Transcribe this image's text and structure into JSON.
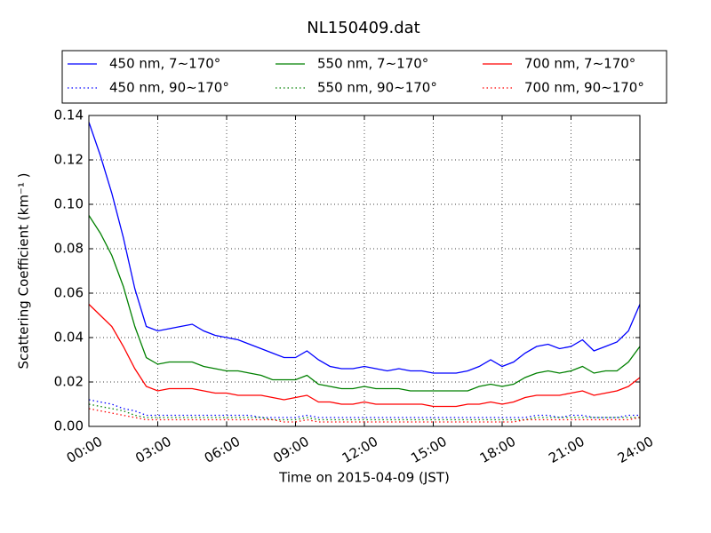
{
  "chart_data": {
    "type": "line",
    "title": "NL150409.dat",
    "x_label": "Time on 2015-04-09 (JST)",
    "y_label": "Scattering Coefficient (km⁻¹ )",
    "x": [
      0,
      0.5,
      1,
      1.5,
      2,
      2.5,
      3,
      3.5,
      4,
      4.5,
      5,
      5.5,
      6,
      6.5,
      7,
      7.5,
      8,
      8.5,
      9,
      9.5,
      10,
      10.5,
      11,
      11.5,
      12,
      12.5,
      13,
      13.5,
      14,
      14.5,
      15,
      15.5,
      16,
      16.5,
      17,
      17.5,
      18,
      18.5,
      19,
      19.5,
      20,
      20.5,
      21,
      21.5,
      22,
      22.5,
      23,
      23.5,
      24
    ],
    "series": [
      {
        "name": "450 nm, 7∼170°",
        "color": "#0000ff",
        "style": "solid",
        "values": [
          0.137,
          0.122,
          0.105,
          0.085,
          0.062,
          0.045,
          0.043,
          0.044,
          0.045,
          0.046,
          0.043,
          0.041,
          0.04,
          0.039,
          0.037,
          0.035,
          0.033,
          0.031,
          0.031,
          0.034,
          0.03,
          0.027,
          0.026,
          0.026,
          0.027,
          0.026,
          0.025,
          0.026,
          0.025,
          0.025,
          0.024,
          0.024,
          0.024,
          0.025,
          0.027,
          0.03,
          0.027,
          0.029,
          0.033,
          0.036,
          0.037,
          0.035,
          0.036,
          0.039,
          0.034,
          0.036,
          0.038,
          0.043,
          0.055
        ]
      },
      {
        "name": "550 nm, 7∼170°",
        "color": "#008000",
        "style": "solid",
        "values": [
          0.095,
          0.087,
          0.077,
          0.063,
          0.045,
          0.031,
          0.028,
          0.029,
          0.029,
          0.029,
          0.027,
          0.026,
          0.025,
          0.025,
          0.024,
          0.023,
          0.021,
          0.021,
          0.021,
          0.023,
          0.019,
          0.018,
          0.017,
          0.017,
          0.018,
          0.017,
          0.017,
          0.017,
          0.016,
          0.016,
          0.016,
          0.016,
          0.016,
          0.016,
          0.018,
          0.019,
          0.018,
          0.019,
          0.022,
          0.024,
          0.025,
          0.024,
          0.025,
          0.027,
          0.024,
          0.025,
          0.025,
          0.029,
          0.036
        ]
      },
      {
        "name": "700 nm, 7∼170°",
        "color": "#ff0000",
        "style": "solid",
        "values": [
          0.055,
          0.05,
          0.045,
          0.036,
          0.026,
          0.018,
          0.016,
          0.017,
          0.017,
          0.017,
          0.016,
          0.015,
          0.015,
          0.014,
          0.014,
          0.014,
          0.013,
          0.012,
          0.013,
          0.014,
          0.011,
          0.011,
          0.01,
          0.01,
          0.011,
          0.01,
          0.01,
          0.01,
          0.01,
          0.01,
          0.009,
          0.009,
          0.009,
          0.01,
          0.01,
          0.011,
          0.01,
          0.011,
          0.013,
          0.014,
          0.014,
          0.014,
          0.015,
          0.016,
          0.014,
          0.015,
          0.016,
          0.018,
          0.022
        ]
      },
      {
        "name": "450 nm, 90∼170°",
        "color": "#0000ff",
        "style": "dotted",
        "values": [
          0.012,
          0.011,
          0.01,
          0.008,
          0.007,
          0.005,
          0.005,
          0.005,
          0.005,
          0.005,
          0.005,
          0.005,
          0.005,
          0.005,
          0.005,
          0.004,
          0.004,
          0.004,
          0.004,
          0.005,
          0.004,
          0.004,
          0.004,
          0.004,
          0.004,
          0.004,
          0.004,
          0.004,
          0.004,
          0.004,
          0.004,
          0.004,
          0.004,
          0.004,
          0.004,
          0.004,
          0.004,
          0.004,
          0.004,
          0.005,
          0.005,
          0.004,
          0.005,
          0.005,
          0.004,
          0.004,
          0.004,
          0.005,
          0.005
        ]
      },
      {
        "name": "550 nm, 90∼170°",
        "color": "#008000",
        "style": "dotted",
        "values": [
          0.01,
          0.009,
          0.008,
          0.007,
          0.005,
          0.004,
          0.004,
          0.004,
          0.004,
          0.004,
          0.004,
          0.004,
          0.004,
          0.004,
          0.004,
          0.004,
          0.003,
          0.003,
          0.003,
          0.004,
          0.003,
          0.003,
          0.003,
          0.003,
          0.003,
          0.003,
          0.003,
          0.003,
          0.003,
          0.003,
          0.003,
          0.003,
          0.003,
          0.003,
          0.003,
          0.003,
          0.003,
          0.003,
          0.003,
          0.004,
          0.004,
          0.004,
          0.004,
          0.004,
          0.004,
          0.004,
          0.004,
          0.004,
          0.004
        ]
      },
      {
        "name": "700 nm, 90∼170°",
        "color": "#ff0000",
        "style": "dotted",
        "values": [
          0.008,
          0.007,
          0.006,
          0.005,
          0.004,
          0.003,
          0.003,
          0.003,
          0.003,
          0.003,
          0.003,
          0.003,
          0.003,
          0.003,
          0.003,
          0.003,
          0.003,
          0.002,
          0.002,
          0.003,
          0.002,
          0.002,
          0.002,
          0.002,
          0.002,
          0.002,
          0.002,
          0.002,
          0.002,
          0.002,
          0.002,
          0.002,
          0.002,
          0.002,
          0.002,
          0.002,
          0.002,
          0.002,
          0.003,
          0.003,
          0.003,
          0.003,
          0.003,
          0.003,
          0.003,
          0.003,
          0.003,
          0.003,
          0.004
        ]
      }
    ],
    "xlim": [
      0,
      24
    ],
    "xticks": [
      {
        "value": 0,
        "label": "00:00"
      },
      {
        "value": 3,
        "label": "03:00"
      },
      {
        "value": 6,
        "label": "06:00"
      },
      {
        "value": 9,
        "label": "09:00"
      },
      {
        "value": 12,
        "label": "12:00"
      },
      {
        "value": 15,
        "label": "15:00"
      },
      {
        "value": 18,
        "label": "18:00"
      },
      {
        "value": 21,
        "label": "21:00"
      },
      {
        "value": 24,
        "label": "24:00"
      }
    ],
    "ylim": [
      0,
      0.14
    ],
    "yticks": [
      {
        "value": 0,
        "label": "0.00"
      },
      {
        "value": 0.02,
        "label": "0.02"
      },
      {
        "value": 0.04,
        "label": "0.04"
      },
      {
        "value": 0.06,
        "label": "0.06"
      },
      {
        "value": 0.08,
        "label": "0.08"
      },
      {
        "value": 0.1,
        "label": "0.10"
      },
      {
        "value": 0.12,
        "label": "0.12"
      },
      {
        "value": 0.14,
        "label": "0.14"
      }
    ],
    "grid": true,
    "legend": "top"
  }
}
